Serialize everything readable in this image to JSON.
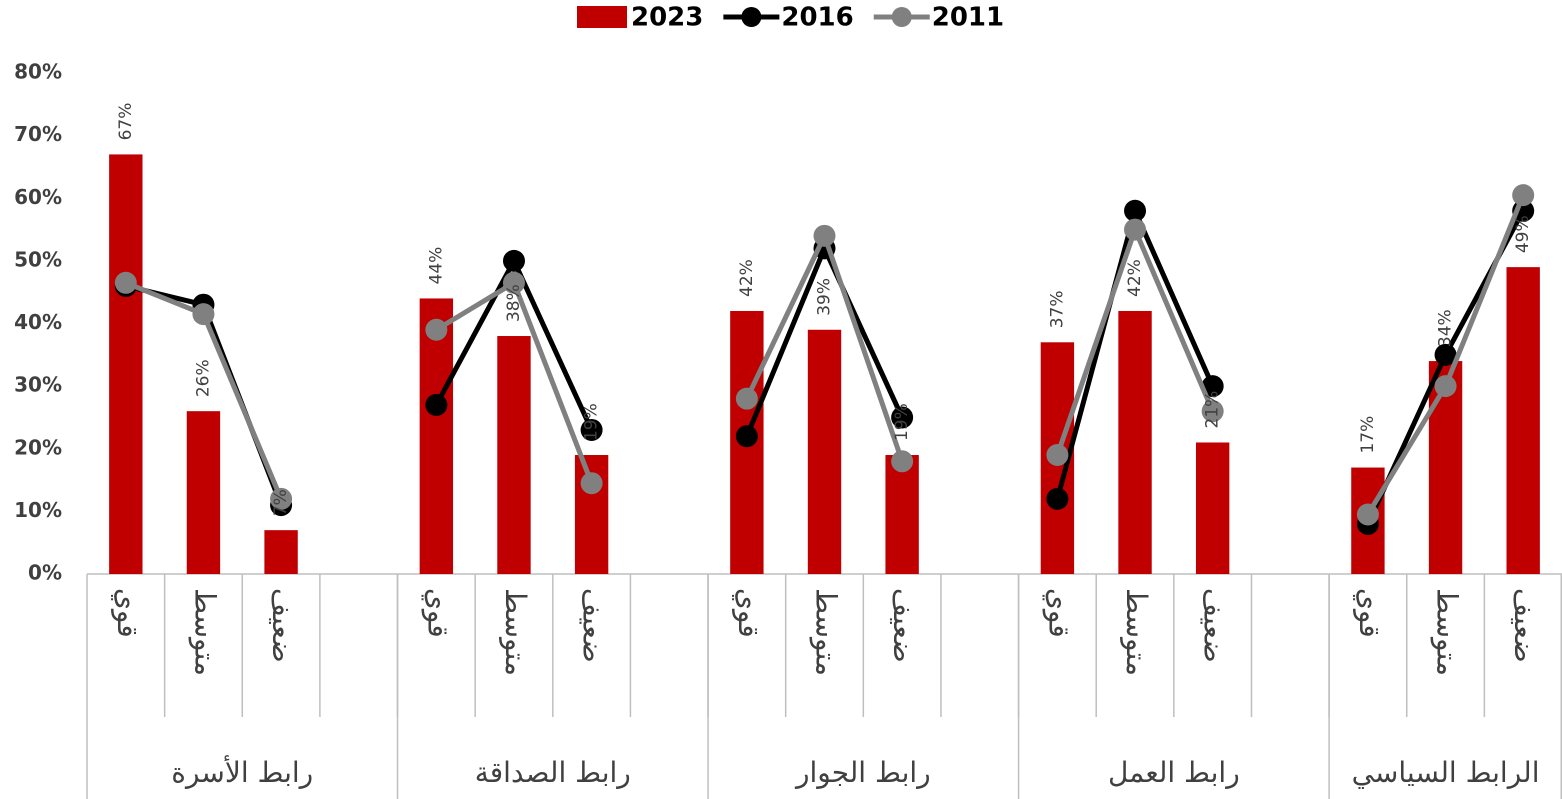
{
  "chart_data": {
    "type": "bar-line",
    "categories": [
      "قوي",
      "متوسط",
      "ضعيف",
      null,
      "قوي",
      "متوسط",
      "ضعيف",
      null,
      "قوي",
      "متوسط",
      "ضعيف",
      null,
      "قوي",
      "متوسط",
      "ضعيف",
      null,
      "قوي",
      "متوسط",
      "ضعيف"
    ],
    "groups": [
      "رابط الأسرة",
      "رابط الصداقة",
      "رابط الجوار",
      "رابط العمل",
      "الرابط السياسي"
    ],
    "series": [
      {
        "name": "2023",
        "type": "bar",
        "color": "#c00000",
        "values": [
          67,
          26,
          7,
          null,
          44,
          38,
          19,
          null,
          42,
          39,
          19,
          null,
          37,
          42,
          21,
          null,
          17,
          34,
          49
        ],
        "value_labels": [
          "67%",
          "26%",
          "7%",
          null,
          "44%",
          "38%",
          "19%",
          null,
          "42%",
          "39%",
          "19%",
          null,
          "37%",
          "42%",
          "21%",
          null,
          "17%",
          "34%",
          "49%"
        ]
      },
      {
        "name": "2016",
        "type": "line",
        "color": "#000000",
        "values": [
          46,
          43,
          11,
          null,
          27,
          50,
          23,
          null,
          22,
          52,
          25,
          null,
          12,
          58,
          30,
          null,
          8,
          35,
          58
        ]
      },
      {
        "name": "2011",
        "type": "line",
        "color": "#808080",
        "values": [
          46.5,
          41.5,
          12,
          null,
          39,
          46.5,
          14.5,
          null,
          28,
          54,
          18,
          null,
          19,
          55,
          26,
          null,
          9.5,
          30,
          60.5
        ]
      }
    ],
    "ylim": [
      0,
      80
    ],
    "yticks": [
      {
        "value": 0,
        "label": "0%"
      },
      {
        "value": 10,
        "label": "10%"
      },
      {
        "value": 20,
        "label": "20%"
      },
      {
        "value": 30,
        "label": "30%"
      },
      {
        "value": 40,
        "label": "40%"
      },
      {
        "value": 50,
        "label": "50%"
      },
      {
        "value": 60,
        "label": "60%"
      },
      {
        "value": 70,
        "label": "70%"
      },
      {
        "value": 80,
        "label": "80%"
      }
    ],
    "legend": "top"
  }
}
